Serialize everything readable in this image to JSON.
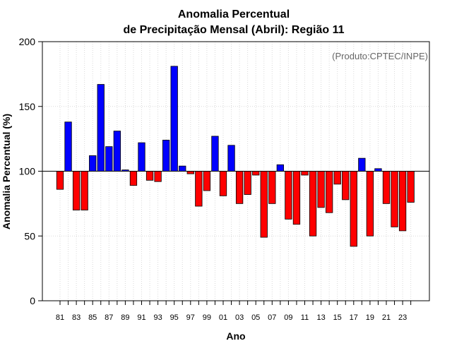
{
  "chart_data": {
    "type": "bar",
    "title_line1": "Anomalia Percentual",
    "title_line2": "de Precipitação Mensal (Abril): Região 11",
    "xlabel": "Ano",
    "ylabel": "Anomalia Percentual (%)",
    "annotation": "(Produto:CPTEC/INPE)",
    "ylim": [
      0,
      200
    ],
    "yticks": [
      0,
      50,
      100,
      150,
      200
    ],
    "baseline": 100,
    "grid": true,
    "colors": {
      "above": "#0000ff",
      "below": "#ff0000",
      "edge": "#000000",
      "grid": "#d9d9d9"
    },
    "tick_labels": [
      "81",
      "83",
      "85",
      "87",
      "89",
      "91",
      "93",
      "95",
      "97",
      "99",
      "01",
      "03",
      "05",
      "07",
      "09",
      "11",
      "13",
      "15",
      "17",
      "19",
      "21",
      "23"
    ],
    "categories": [
      "81",
      "82",
      "83",
      "84",
      "85",
      "86",
      "87",
      "88",
      "89",
      "90",
      "91",
      "92",
      "93",
      "94",
      "95",
      "96",
      "97",
      "98",
      "99",
      "00",
      "01",
      "02",
      "03",
      "04",
      "05",
      "06",
      "07",
      "08",
      "09",
      "10",
      "11",
      "12",
      "13",
      "14",
      "15",
      "16",
      "17",
      "18",
      "19",
      "20",
      "21",
      "22",
      "23",
      "24"
    ],
    "values": [
      86,
      138,
      70,
      70,
      112,
      167,
      119,
      131,
      101,
      89,
      122,
      93,
      92,
      124,
      181,
      104,
      98,
      73,
      85,
      127,
      81,
      120,
      75,
      82,
      97,
      49,
      75,
      105,
      63,
      59,
      97,
      50,
      72,
      68,
      90,
      78,
      42,
      110,
      50,
      102,
      75,
      57,
      54,
      76
    ]
  }
}
